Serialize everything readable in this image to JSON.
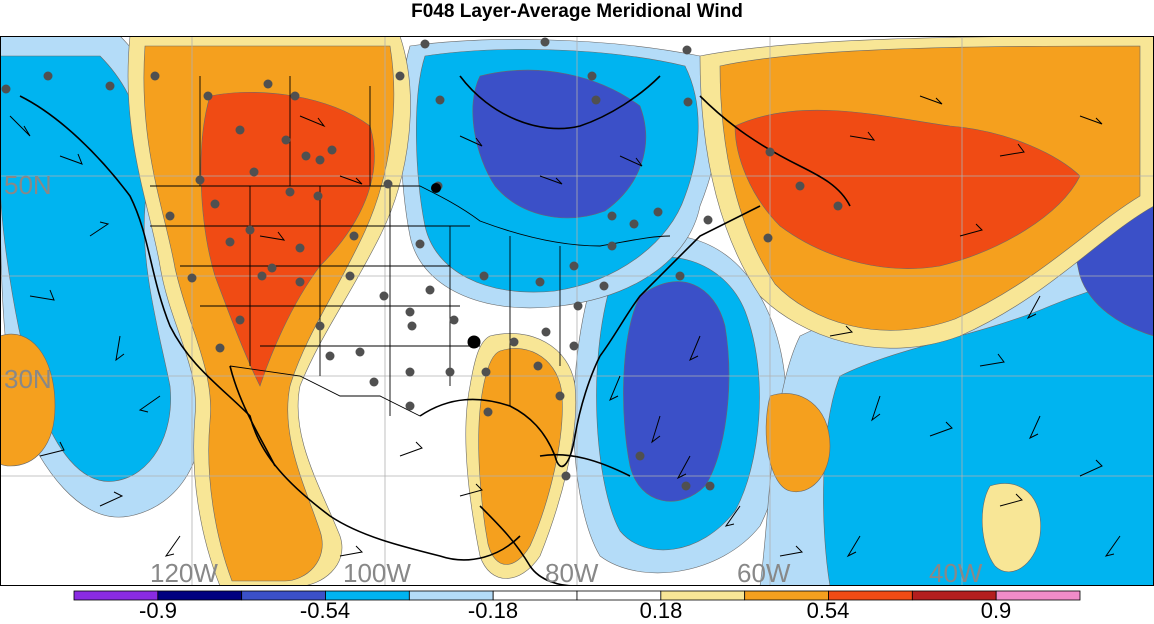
{
  "title": "F048 Layer-Average Meridional Wind",
  "map": {
    "lat_labels": [
      "50N",
      "30N"
    ],
    "lon_labels": [
      "120W",
      "100W",
      "80W",
      "60W",
      "40W"
    ],
    "label_color": "#888888"
  },
  "colorbar": {
    "labels": [
      "-0.9",
      "-0.54",
      "-0.18",
      "0.18",
      "0.54",
      "0.9"
    ],
    "colors": [
      "#8a2be2",
      "#000080",
      "#3b50c8",
      "#00b4f0",
      "#b4dcf8",
      "#ffffff",
      "#ffffff",
      "#f8e696",
      "#f5a01e",
      "#f04b14",
      "#b41e1e",
      "#f08cc8"
    ]
  },
  "field_colors": {
    "strong_neg": "#3b50c8",
    "mid_neg": "#00b4f0",
    "weak_neg": "#b4dcf8",
    "weak_pos": "#f8e696",
    "mid_pos": "#f5a01e",
    "strong_pos": "#f04b14",
    "station": "#505050"
  }
}
